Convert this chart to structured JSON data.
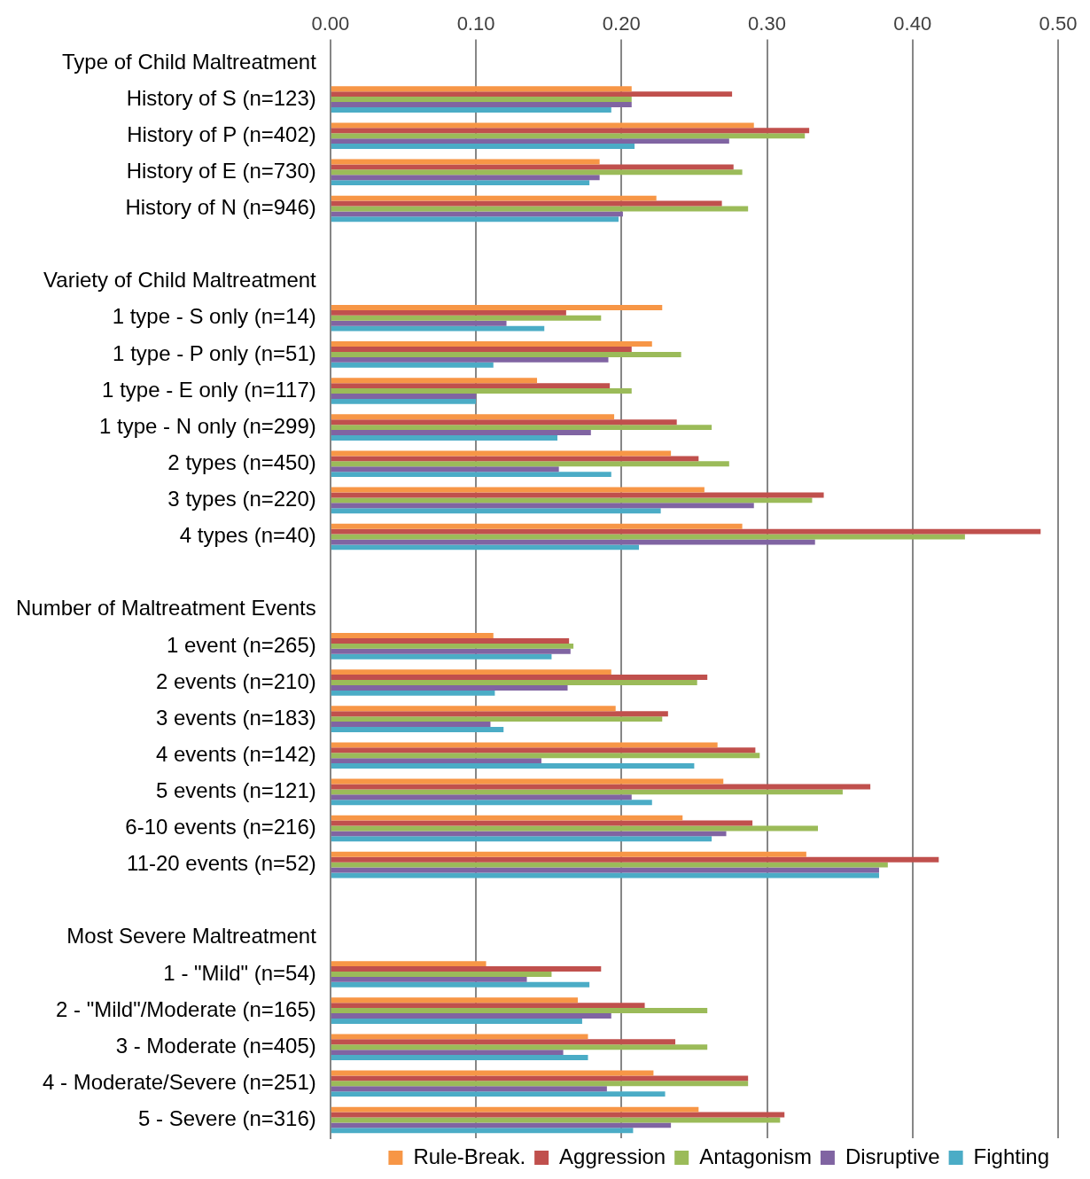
{
  "chart_data": {
    "type": "bar",
    "orientation": "horizontal",
    "categories": [
      "Type of Child Maltreatment",
      "History of S (n=123)",
      "History of P (n=402)",
      "History of E (n=730)",
      "History of N (n=946)",
      null,
      "Variety of Child Maltreatment",
      "1 type - S only (n=14)",
      "1 type - P only (n=51)",
      "1 type - E only (n=117)",
      "1 type - N only (n=299)",
      "2 types (n=450)",
      "3 types (n=220)",
      "4 types (n=40)",
      null,
      "Number of Maltreatment Events",
      "1 event (n=265)",
      "2 events (n=210)",
      "3 events (n=183)",
      "4 events (n=142)",
      "5 events (n=121)",
      "6-10 events (n=216)",
      "11-20 events (n=52)",
      null,
      "Most Severe Maltreatment",
      "1 - \"Mild\" (n=54)",
      "2 - \"Mild\"/Moderate (n=165)",
      "3 - Moderate (n=405)",
      "4 - Moderate/Severe (n=251)",
      "5 - Severe (n=316)"
    ],
    "series": [
      {
        "name": "Rule-Break.",
        "color": "#f79646",
        "values": [
          null,
          0.207,
          0.291,
          0.185,
          0.224,
          null,
          null,
          0.228,
          0.221,
          0.142,
          0.195,
          0.234,
          0.257,
          0.283,
          null,
          null,
          0.112,
          0.193,
          0.196,
          0.266,
          0.27,
          0.242,
          0.327,
          null,
          null,
          0.107,
          0.17,
          0.177,
          0.222,
          0.253
        ]
      },
      {
        "name": "Aggression",
        "color": "#c0504d",
        "values": [
          null,
          0.276,
          0.329,
          0.277,
          0.269,
          null,
          null,
          0.162,
          0.207,
          0.192,
          0.238,
          0.253,
          0.339,
          0.488,
          null,
          null,
          0.164,
          0.259,
          0.232,
          0.292,
          0.371,
          0.29,
          0.418,
          null,
          null,
          0.186,
          0.216,
          0.237,
          0.287,
          0.312
        ]
      },
      {
        "name": "Antagonism",
        "color": "#9bbb59",
        "values": [
          null,
          0.207,
          0.326,
          0.283,
          0.287,
          null,
          null,
          0.186,
          0.241,
          0.207,
          0.262,
          0.274,
          0.331,
          0.436,
          null,
          null,
          0.167,
          0.252,
          0.228,
          0.295,
          0.352,
          0.335,
          0.383,
          null,
          null,
          0.152,
          0.259,
          0.259,
          0.287,
          0.309
        ]
      },
      {
        "name": "Disruptive",
        "color": "#8064a2",
        "values": [
          null,
          0.207,
          0.274,
          0.185,
          0.201,
          null,
          null,
          0.121,
          0.191,
          0.1,
          0.179,
          0.157,
          0.291,
          0.333,
          null,
          null,
          0.165,
          0.163,
          0.11,
          0.145,
          0.207,
          0.272,
          0.377,
          null,
          null,
          0.135,
          0.193,
          0.16,
          0.19,
          0.234
        ]
      },
      {
        "name": "Fighting",
        "color": "#4bacc6",
        "values": [
          null,
          0.193,
          0.209,
          0.178,
          0.198,
          null,
          null,
          0.147,
          0.112,
          0.1,
          0.156,
          0.193,
          0.227,
          0.212,
          null,
          null,
          0.152,
          0.113,
          0.119,
          0.25,
          0.221,
          0.262,
          0.377,
          null,
          null,
          0.178,
          0.173,
          0.177,
          0.23,
          0.208
        ]
      }
    ],
    "xlim": [
      0,
      0.5
    ],
    "xticks": [
      {
        "value": 0,
        "label": "0.00"
      },
      {
        "value": 0.1,
        "label": "0.10"
      },
      {
        "value": 0.2,
        "label": "0.20"
      },
      {
        "value": 0.3,
        "label": "0.30"
      },
      {
        "value": 0.4,
        "label": "0.40"
      },
      {
        "value": 0.5,
        "label": "0.50"
      }
    ],
    "grid": "x",
    "legend": "bottom"
  }
}
